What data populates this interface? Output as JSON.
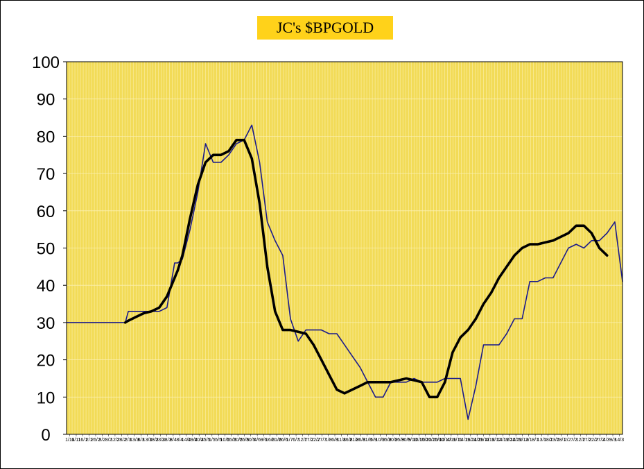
{
  "chart_data": {
    "type": "line",
    "title": "JC's $BPGOLD",
    "xlabel": "",
    "ylabel": "",
    "ylim": [
      0,
      100
    ],
    "yticks": [
      0,
      10,
      20,
      30,
      40,
      50,
      60,
      70,
      80,
      90,
      100
    ],
    "xtick_labels": [
      "1/11",
      "6/11",
      "16/1",
      "2/1",
      "26/2",
      "3/2",
      "8/2",
      "12/2",
      "28/2",
      "2/3",
      "13/3",
      "8/3",
      "13/3",
      "18/3",
      "23/3",
      "28/3",
      "3/4",
      "8/4",
      "14/4",
      "19/4",
      "20/4",
      "25/5",
      "1/5",
      "5/5",
      "10/5",
      "15/5",
      "20/5",
      "25/5",
      "30/5",
      "4/6",
      "9/6",
      "16/6",
      "21/6",
      "26/6",
      "1/7",
      "6/7",
      "12/7",
      "17/7",
      "22/7",
      "27/7",
      "1/8",
      "6/8",
      "11/8",
      "16/8",
      "21/8",
      "26/8",
      "31/8",
      "5/9",
      "10/9",
      "15/9",
      "20/9",
      "25/9",
      "30/9",
      "5/10",
      "10/10",
      "15/10",
      "20/10",
      "25/10",
      "30/10",
      "4/11",
      "9/11",
      "14/11",
      "19/11",
      "24/11",
      "29/11",
      "4/12",
      "9/12",
      "14/12",
      "19/12",
      "24/12",
      "29/12",
      "3/1",
      "8/1",
      "13/1",
      "18/1",
      "23/1",
      "28/1",
      "2/2",
      "7/2",
      "12/2",
      "17/2",
      "22/2",
      "27/2",
      "4/3",
      "9/3",
      "14/3"
    ],
    "x": [
      0,
      8,
      16,
      24,
      32,
      38,
      40,
      45,
      50,
      55,
      60,
      65,
      70,
      72,
      75,
      80,
      85,
      90,
      95,
      100,
      105,
      110,
      115,
      120,
      125,
      130,
      135,
      140,
      145,
      150,
      155,
      160,
      165,
      170,
      175,
      180,
      185,
      190,
      195,
      200,
      205,
      210,
      215,
      220,
      225,
      230,
      235,
      240,
      245,
      250,
      255,
      260,
      265,
      270,
      275,
      280,
      285,
      290,
      295,
      300,
      305,
      310,
      315,
      320,
      325,
      330,
      335,
      340,
      345,
      350,
      355,
      360
    ],
    "series": [
      {
        "values": [
          30,
          30,
          30,
          30,
          30,
          30,
          33,
          33,
          33,
          33,
          33,
          34,
          46,
          46,
          47,
          55,
          65,
          78,
          73,
          73,
          75,
          78,
          79,
          83,
          73,
          57,
          52,
          48,
          31,
          25,
          28,
          28,
          28,
          27,
          27,
          24,
          21,
          18,
          14,
          10,
          10,
          14,
          14,
          14,
          15,
          14,
          14,
          14,
          15,
          15,
          15,
          4,
          13,
          24,
          24,
          24,
          27,
          31,
          31,
          41,
          41,
          42,
          42,
          46,
          50,
          51,
          50,
          52,
          52,
          54,
          57,
          41
        ],
        "color": "#1a1a8c"
      },
      {
        "values": [
          null,
          null,
          null,
          null,
          null,
          30,
          30.5,
          31.5,
          32.5,
          33,
          34,
          37,
          42,
          44,
          48,
          58,
          67,
          73,
          75,
          75,
          76,
          79,
          79,
          74,
          62,
          45,
          33,
          28,
          28,
          27.5,
          27,
          24,
          20,
          16,
          12,
          11,
          12,
          13,
          14,
          14,
          14,
          14,
          14.5,
          15,
          14.5,
          14,
          10,
          10,
          14,
          22,
          26,
          28,
          31,
          35,
          38,
          42,
          45,
          48,
          50,
          51,
          51,
          51.5,
          52,
          53,
          54,
          56,
          56,
          54,
          50,
          48,
          null,
          null
        ],
        "color": "#000000"
      }
    ]
  }
}
